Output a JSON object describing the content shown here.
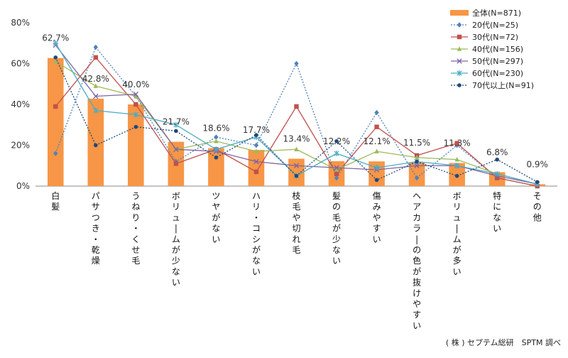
{
  "chart_data": {
    "type": "bar",
    "ylim": [
      0,
      80
    ],
    "y_ticks": [
      "0%",
      "20%",
      "40%",
      "60%",
      "80%"
    ],
    "categories": [
      "白髪",
      "パサつき・乾燥",
      "うねり・くせ毛",
      "ボリュームが少ない",
      "ツヤがない",
      "ハリ・コシがない",
      "枝毛や切れ毛",
      "髪の毛が少ない",
      "傷みやすい",
      "ヘアカラーの色が抜けやすい",
      "ボリュームが多い",
      "特にない",
      "その他"
    ],
    "bar_series": {
      "name": "全体(N=871)",
      "color": "#f79646",
      "values": [
        62.7,
        42.8,
        40.0,
        21.7,
        18.6,
        17.7,
        13.4,
        12.2,
        12.1,
        11.5,
        11.3,
        6.8,
        0.9
      ],
      "labels": [
        "62.7%",
        "42.8%",
        "40.0%",
        "21.7%",
        "18.6%",
        "17.7%",
        "13.4%",
        "12.2%",
        "12.1%",
        "11.5%",
        "11.3%",
        "6.8%",
        "0.9%"
      ]
    },
    "series": [
      {
        "name": "20代(N=25)",
        "color": "#4f81bd",
        "marker": "diamond",
        "dash": "dotted",
        "values": [
          16,
          68,
          44,
          12,
          24,
          20,
          60,
          4,
          36,
          4,
          20,
          4,
          0
        ]
      },
      {
        "name": "30代(N=72)",
        "color": "#c0504d",
        "marker": "square",
        "dash": "solid",
        "values": [
          39,
          63,
          40,
          11,
          18,
          7,
          39,
          6,
          29,
          15,
          21,
          4,
          0
        ]
      },
      {
        "name": "40代(N=156)",
        "color": "#9bbb59",
        "marker": "triangle",
        "dash": "solid",
        "values": [
          61,
          49,
          44,
          18,
          22,
          17,
          18,
          8,
          17,
          14,
          13,
          6,
          1
        ]
      },
      {
        "name": "50代(N=297)",
        "color": "#8064a2",
        "marker": "x",
        "dash": "solid",
        "values": [
          69,
          44,
          45,
          18,
          17,
          12,
          10,
          9,
          8,
          10,
          10,
          5,
          1
        ]
      },
      {
        "name": "60代(N=230)",
        "color": "#4bacc6",
        "marker": "star",
        "dash": "solid",
        "values": [
          70,
          37,
          35,
          30,
          18,
          24,
          5,
          16,
          9,
          12,
          10,
          6,
          1
        ]
      },
      {
        "name": "70代以上(N=91)",
        "color": "#1f497d",
        "marker": "circle",
        "dash": "dotted",
        "values": [
          63,
          20,
          29,
          27,
          14,
          25,
          5,
          22,
          3,
          12,
          5,
          13,
          2
        ]
      }
    ],
    "legend_position": "top-right",
    "grid": false
  },
  "credit": "( 株 ) セプテム総研　SPTM 調べ"
}
